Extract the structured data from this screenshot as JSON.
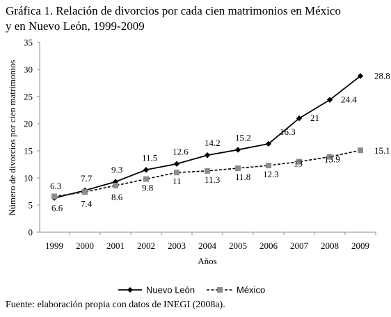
{
  "title_lines": [
    "Gráfica 1. Relación de divorcios por cada cien matrimonios en México",
    "y en Nuevo León, 1999-2009"
  ],
  "source": {
    "prefix": "Fuente: elaboración propia con datos de ",
    "org": "INEGI",
    "suffix": " (2008a)."
  },
  "chart_data": {
    "type": "line",
    "title": "Gráfica 1. Relación de divorcios por cada cien matrimonios en México y en Nuevo León, 1999-2009",
    "xlabel": "Años",
    "ylabel": "Número de divorcios por cien matrimonios",
    "categories": [
      "1999",
      "2000",
      "2001",
      "2002",
      "2003",
      "2004",
      "2005",
      "2006",
      "2007",
      "2008",
      "2009"
    ],
    "ylim": [
      0,
      35
    ],
    "yticks": [
      0,
      5,
      10,
      15,
      20,
      25,
      30,
      35
    ],
    "grid": false,
    "legend_position": "bottom",
    "series": [
      {
        "name": "Nuevo León",
        "values": [
          6.3,
          7.7,
          9.3,
          11.5,
          12.6,
          14.2,
          15.2,
          16.3,
          21,
          24.4,
          28.8
        ],
        "labels": [
          "6.3",
          "7.7",
          "9.3",
          "11.5",
          "12.6",
          "14.2",
          "15.2",
          "16.3",
          "21",
          "24.4",
          "28.8"
        ],
        "color": "#000000",
        "line_style": "solid",
        "marker": "diamond"
      },
      {
        "name": "México",
        "values": [
          6.6,
          7.4,
          8.6,
          9.8,
          11,
          11.3,
          11.8,
          12.3,
          13,
          13.9,
          15.1
        ],
        "labels": [
          "6.6",
          "7.4",
          "8.6",
          "9.8",
          "11",
          "11.3",
          "11.8",
          "12.3",
          "13",
          "13.9",
          "15.1"
        ],
        "color": "#000000",
        "marker_color": "#8c8c8c",
        "line_style": "dashed",
        "marker": "square"
      }
    ]
  }
}
